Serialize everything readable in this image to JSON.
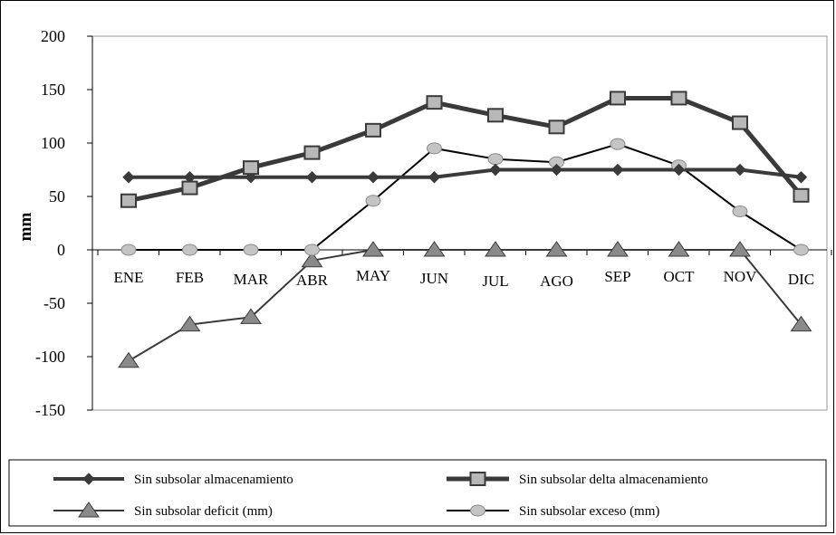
{
  "chart_data": {
    "type": "line",
    "ylabel": "mm",
    "ylim": [
      -150,
      200
    ],
    "yticks": [
      200,
      150,
      100,
      50,
      0,
      -50,
      -100,
      -150
    ],
    "categories": [
      "ENE",
      "FEB",
      "MAR",
      "ABR",
      "MAY",
      "JUN",
      "JUL",
      "AGO",
      "SEP",
      "OCT",
      "NOV",
      "DIC"
    ],
    "series": [
      {
        "name": "Sin subsolar almacenamiento",
        "values": [
          68,
          68,
          68,
          68,
          68,
          68,
          75,
          75,
          75,
          75,
          75,
          68
        ],
        "color": "#3a3a3a",
        "marker": "diamond",
        "line_width": 4
      },
      {
        "name": "Sin subsolar delta almacenamiento",
        "values": [
          46,
          58,
          77,
          91,
          112,
          138,
          126,
          115,
          142,
          142,
          119,
          51
        ],
        "color": "#3a3a3a",
        "marker": "square",
        "marker_fill": "#b8b8b8",
        "line_width": 5
      },
      {
        "name": "Sin subsolar deficit (mm)",
        "values": [
          -104,
          -70,
          -63,
          -10,
          0,
          0,
          0,
          0,
          0,
          0,
          0,
          -70
        ],
        "color": "#3a3a3a",
        "marker": "triangle",
        "marker_fill": "#8a8a8a",
        "line_width": 2
      },
      {
        "name": "Sin subsolar exceso (mm)",
        "values": [
          0,
          0,
          0,
          0,
          46,
          95,
          85,
          82,
          99,
          79,
          36,
          0
        ],
        "color": "#000000",
        "marker": "circle",
        "marker_fill": "#c4c4c4",
        "line_width": 2
      }
    ],
    "grid": false,
    "legend_position": "bottom"
  }
}
